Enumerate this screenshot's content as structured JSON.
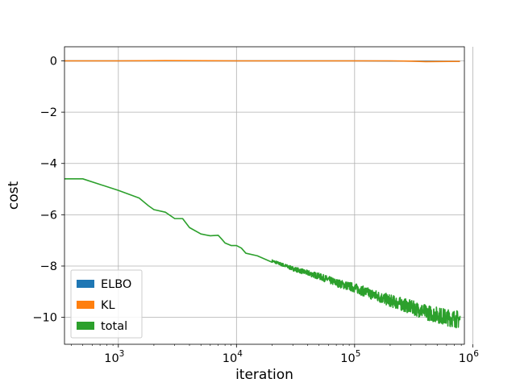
{
  "chart_data": {
    "type": "line",
    "title": "",
    "xlabel": "iteration",
    "ylabel": "cost",
    "xscale": "log",
    "xlim": [
      350,
      850000
    ],
    "ylim": [
      -11.05,
      0.55
    ],
    "grid": true,
    "legend_position": "lower-left",
    "x_ticks": [
      {
        "value": 1000,
        "base": "10",
        "exp": "3"
      },
      {
        "value": 10000,
        "base": "10",
        "exp": "4"
      },
      {
        "value": 100000,
        "base": "10",
        "exp": "5"
      },
      {
        "value": 1000000,
        "base": "10",
        "exp": "6"
      }
    ],
    "y_ticks": [
      {
        "value": 0,
        "label": "0"
      },
      {
        "value": -2,
        "label": "−2"
      },
      {
        "value": -4,
        "label": "−4"
      },
      {
        "value": -6,
        "label": "−6"
      },
      {
        "value": -8,
        "label": "−8"
      },
      {
        "value": -10,
        "label": "−10"
      }
    ],
    "series": [
      {
        "name": "ELBO",
        "color": "#1f77b4",
        "x": [
          350,
          1000,
          10000,
          100000,
          300000,
          780000
        ],
        "y": [
          0.0,
          0.0,
          0.0,
          0.0,
          -0.01,
          -0.02
        ]
      },
      {
        "name": "KL",
        "color": "#ff7f0e",
        "x": [
          350,
          1000,
          2500,
          10000,
          50000,
          100000,
          200000,
          300000,
          400000,
          780000
        ],
        "y": [
          0.0,
          0.0,
          0.01,
          0.0,
          0.0,
          0.0,
          0.0,
          -0.01,
          -0.03,
          -0.02
        ]
      },
      {
        "name": "total",
        "color": "#2ca02c",
        "noisy_from": 20000,
        "x": [
          350,
          500,
          1000,
          1500,
          1800,
          2000,
          2500,
          3000,
          3500,
          4000,
          5000,
          6000,
          7000,
          7500,
          8000,
          9000,
          10000,
          11000,
          12000,
          15000,
          20000,
          30000,
          50000,
          70000,
          100000,
          150000,
          200000,
          300000,
          400000,
          500000,
          600000,
          700000,
          780000
        ],
        "y": [
          -4.6,
          -4.6,
          -5.05,
          -5.35,
          -5.65,
          -5.8,
          -5.9,
          -6.15,
          -6.15,
          -6.5,
          -6.75,
          -6.82,
          -6.8,
          -6.95,
          -7.1,
          -7.2,
          -7.2,
          -7.3,
          -7.5,
          -7.6,
          -7.8,
          -8.1,
          -8.4,
          -8.65,
          -8.85,
          -9.15,
          -9.35,
          -9.6,
          -9.8,
          -9.9,
          -10.0,
          -10.05,
          -10.1
        ]
      }
    ]
  }
}
